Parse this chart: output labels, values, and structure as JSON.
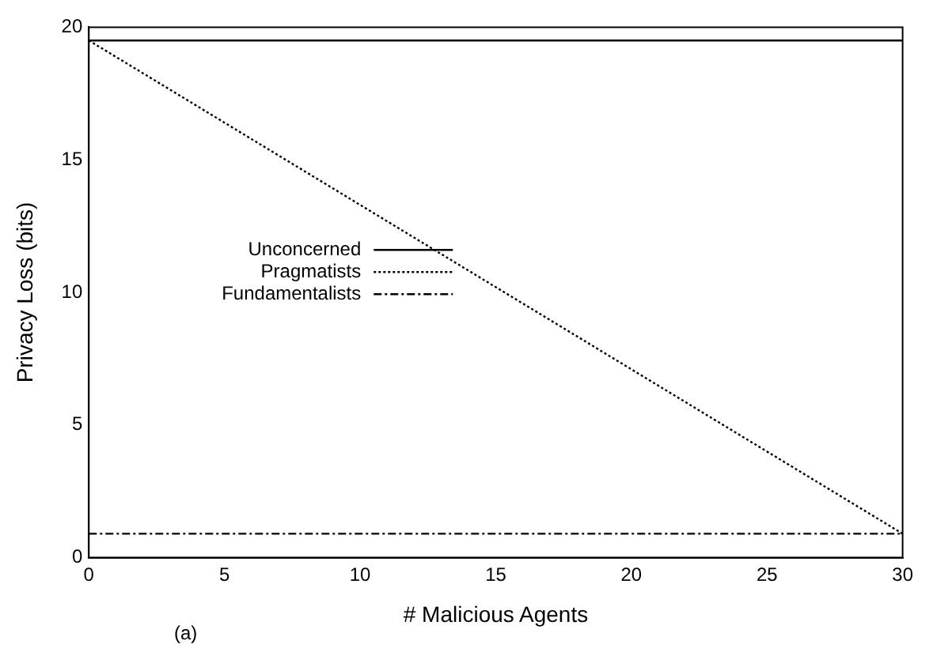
{
  "chart_data": {
    "type": "line",
    "xlabel": "# Malicious Agents",
    "ylabel": "Privacy Loss (bits)",
    "x": [
      0,
      30
    ],
    "xlim": [
      0,
      30
    ],
    "xticks": [
      0,
      5,
      10,
      15,
      20,
      25,
      30
    ],
    "ylim": [
      0,
      20
    ],
    "yticks": [
      0,
      5,
      10,
      15,
      20
    ],
    "grid": false,
    "legend": "left",
    "marker": "none",
    "series": [
      {
        "name": "Unconcerned",
        "color": "#000000",
        "line_style": "solid",
        "values": [
          19.5,
          19.5
        ]
      },
      {
        "name": "Pragmatists",
        "color": "#000000",
        "line_style": "dotted",
        "values": [
          19.5,
          0.9
        ]
      },
      {
        "name": "Fundamentalists",
        "color": "#000000",
        "line_style": "dashed",
        "values": [
          0.9,
          0.9
        ]
      }
    ],
    "annotations": [
      "(a)"
    ]
  }
}
